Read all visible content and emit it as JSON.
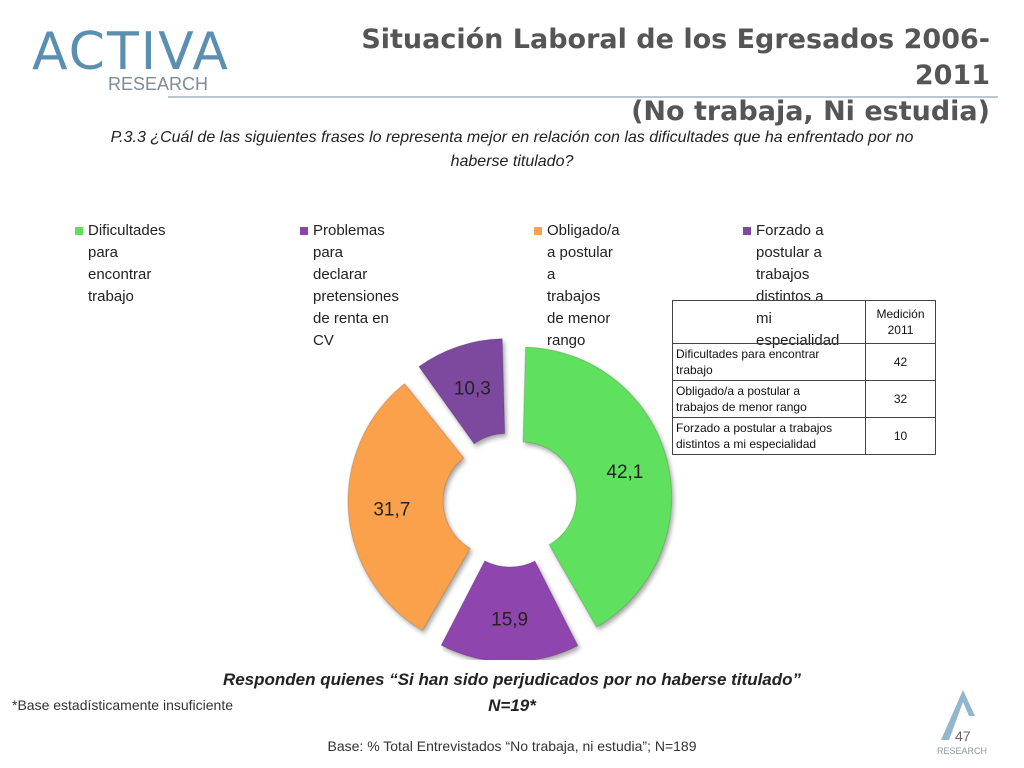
{
  "header": {
    "logo_word": "ACTIVA",
    "logo_sub": "RESEARCH",
    "title_line1": "Situación Laboral de los Egresados 2006-2011",
    "title_line2": "(No trabaja, Ni estudia)"
  },
  "question_line1": "P.3.3 ¿Cuál de las siguientes frases lo representa mejor en relación con las dificultades que ha enfrentado por no",
  "question_line2": "haberse titulado?",
  "colors": {
    "green": "#5ee05e",
    "purple_mid": "#8e44ad",
    "orange": "#fba04b",
    "purple_dark": "#7b4a9e"
  },
  "chart_data": {
    "type": "pie",
    "subtype": "donut",
    "legend_position": "top",
    "title": "",
    "slices": [
      {
        "label": "Dificultades para encontrar trabajo",
        "value": 42.1,
        "value_label": "42,1",
        "color": "#5ee05e"
      },
      {
        "label": "Problemas para declarar pretensiones de renta en CV",
        "value": 15.9,
        "value_label": "15,9",
        "color": "#8e44ad"
      },
      {
        "label": "Obligado/a a postular a trabajos de menor rango",
        "value": 31.7,
        "value_label": "31,7",
        "color": "#fba04b"
      },
      {
        "label": "Forzado a postular a trabajos distintos a mi especialidad",
        "value": 10.3,
        "value_label": "10,3",
        "color": "#7b4a9e"
      }
    ],
    "legend": [
      {
        "line1": "Dificultades para encontrar",
        "line2": "trabajo"
      },
      {
        "line1": "Problemas para declarar",
        "line2": "pretensiones de renta en CV"
      },
      {
        "line1": "Obligado/a a postular a",
        "line2": "trabajos de menor rango"
      },
      {
        "line1": "Forzado a postular a trabajos",
        "line2": "distintos a mi especialidad"
      }
    ]
  },
  "table": {
    "header_line1": "Medición",
    "header_line2": "2011",
    "rows": [
      {
        "line1": "Dificultades para encontrar",
        "line2": "trabajo",
        "value": "42"
      },
      {
        "line1": "Obligado/a a postular a",
        "line2": "trabajos de menor rango",
        "value": "32"
      },
      {
        "line1": "Forzado a postular a trabajos",
        "line2": "distintos a mi especialidad",
        "value": "10"
      }
    ]
  },
  "footer": {
    "respond": "Responden quienes “Si han sido perjudicados por no haberse titulado”",
    "n": "N=19*",
    "base_note": "*Base estadísticamente insuficiente",
    "base": "Base: % Total Entrevistados “No trabaja, ni estudia”; N=189",
    "page": "47",
    "corner_logo_text": "RESEARCH"
  }
}
